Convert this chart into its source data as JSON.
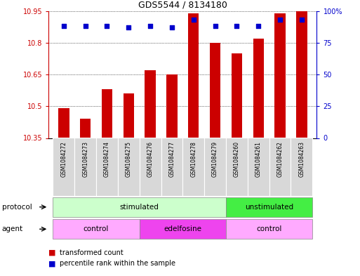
{
  "title": "GDS5544 / 8134180",
  "samples": [
    "GSM1084272",
    "GSM1084273",
    "GSM1084274",
    "GSM1084275",
    "GSM1084276",
    "GSM1084277",
    "GSM1084278",
    "GSM1084279",
    "GSM1084260",
    "GSM1084261",
    "GSM1084262",
    "GSM1084263"
  ],
  "bar_values": [
    10.49,
    10.44,
    10.58,
    10.56,
    10.67,
    10.65,
    10.94,
    10.8,
    10.75,
    10.82,
    10.94,
    10.95
  ],
  "percentile_values": [
    88,
    88,
    88,
    87,
    88,
    87,
    93,
    88,
    88,
    88,
    93,
    93
  ],
  "bar_bottom": 10.35,
  "ylim_left": [
    10.35,
    10.95
  ],
  "ylim_right": [
    0,
    100
  ],
  "yticks_left": [
    10.35,
    10.5,
    10.65,
    10.8,
    10.95
  ],
  "yticks_right": [
    0,
    25,
    50,
    75,
    100
  ],
  "ytick_labels_left": [
    "10.35",
    "10.5",
    "10.65",
    "10.8",
    "10.95"
  ],
  "ytick_labels_right": [
    "0",
    "25",
    "50",
    "75",
    "100%"
  ],
  "bar_color": "#cc0000",
  "dot_color": "#0000cc",
  "protocol_color_light": "#ccffcc",
  "protocol_color_green": "#44ee44",
  "agent_color_light": "#ffaaff",
  "agent_color_pink": "#ee44ee",
  "left_tick_color": "#cc0000",
  "right_tick_color": "#0000cc",
  "sample_box_color": "#d8d8d8",
  "legend_dot_size": 6
}
